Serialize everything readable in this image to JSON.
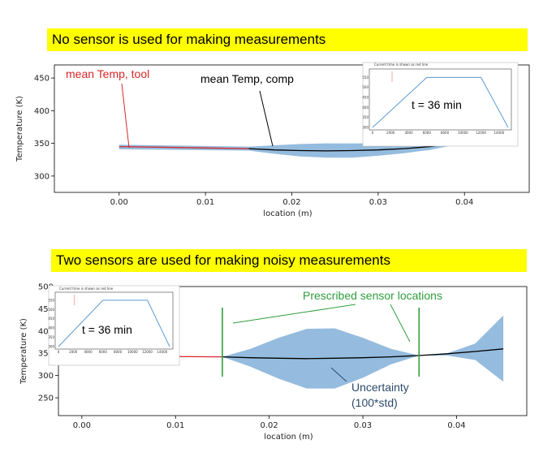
{
  "banners": {
    "top": "No sensor is used for making measurements",
    "bottom": "Two sensors are used for making noisy measurements"
  },
  "colors": {
    "band": "#8fb8dc",
    "comp_line": "#000000",
    "tool_line": "#d62728",
    "sensor": "#2e9e3c",
    "banner": "#ffff00",
    "uncertainty_text": "#2c4a6b"
  },
  "chart_data": [
    {
      "type": "line",
      "xlabel": "location (m)",
      "ylabel": "Temperature (K)",
      "xlim": [
        -0.0075,
        0.0475
      ],
      "ylim": [
        275,
        470
      ],
      "xticks": [
        0.0,
        0.01,
        0.02,
        0.03,
        0.04
      ],
      "yticks": [
        300,
        350,
        400,
        450
      ],
      "series": [
        {
          "name": "mean Temp, tool",
          "x": [
            0.0,
            0.005,
            0.01,
            0.015
          ],
          "y": [
            345,
            344,
            343,
            342
          ]
        },
        {
          "name": "mean Temp, comp",
          "x": [
            0.015,
            0.018,
            0.021,
            0.024,
            0.027,
            0.03,
            0.033,
            0.036,
            0.039,
            0.042,
            0.045
          ],
          "y": [
            342,
            340,
            339,
            338.5,
            339,
            340,
            342,
            345,
            350,
            355,
            362
          ],
          "band_upper": [
            345,
            347,
            349,
            350,
            350,
            350,
            349,
            348,
            350,
            356,
            362
          ],
          "band_lower": [
            339,
            334,
            330,
            328,
            328,
            331,
            335,
            340,
            348,
            355,
            362
          ]
        }
      ],
      "band_x_tool": [
        0.0,
        0.015
      ],
      "band_tool_upper": [
        348,
        345
      ],
      "band_tool_lower": [
        341,
        339
      ],
      "annotations": {
        "tool_label": "mean Temp, tool",
        "comp_label": "mean Temp, comp"
      },
      "inset": {
        "title": "Current time is shown as red line",
        "time_label": "t = 36 min",
        "x": [
          0,
          6000,
          12000,
          15000
        ],
        "y": [
          300,
          550,
          550,
          300
        ],
        "xticks": [
          "0",
          "2000",
          "4000",
          "6000",
          "8000",
          "10000",
          "12000",
          "14000"
        ],
        "yticks": [
          "300",
          "350",
          "400",
          "450",
          "500",
          "550"
        ]
      }
    },
    {
      "type": "line",
      "xlabel": "location (m)",
      "ylabel": "Temperature (K)",
      "xlim": [
        -0.0025,
        0.0475
      ],
      "ylim": [
        210,
        500
      ],
      "xticks": [
        0.0,
        0.01,
        0.02,
        0.03,
        0.04
      ],
      "yticks": [
        250,
        300,
        350,
        400,
        450,
        500
      ],
      "series": [
        {
          "name": "tool",
          "x": [
            0.0,
            0.015
          ],
          "y": [
            344,
            342
          ]
        },
        {
          "name": "comp",
          "x": [
            0.015,
            0.018,
            0.021,
            0.024,
            0.027,
            0.03,
            0.033,
            0.036,
            0.039,
            0.042,
            0.045
          ],
          "y": [
            342,
            340,
            339,
            338,
            339,
            340,
            342,
            345,
            349,
            354,
            360
          ],
          "band_upper": [
            342,
            360,
            385,
            405,
            406,
            385,
            360,
            345,
            350,
            372,
            435
          ],
          "band_lower": [
            342,
            320,
            293,
            271,
            271,
            295,
            325,
            345,
            345,
            335,
            286
          ]
        }
      ],
      "sensor_locations": [
        0.015,
        0.036
      ],
      "annotations": {
        "sensor_label": "Prescribed sensor locations",
        "uncertainty_line1": "Uncertainty",
        "uncertainty_line2": "(100*std)"
      },
      "inset": {
        "title": "Current time is shown as red line",
        "time_label": "t = 36 min",
        "x": [
          0,
          6000,
          12000,
          15000
        ],
        "y": [
          300,
          550,
          550,
          300
        ],
        "xticks": [
          "0",
          "2000",
          "4000",
          "6000",
          "8000",
          "10000",
          "12000",
          "14000"
        ],
        "yticks": [
          "300",
          "350",
          "400",
          "450",
          "500",
          "550"
        ]
      }
    }
  ]
}
